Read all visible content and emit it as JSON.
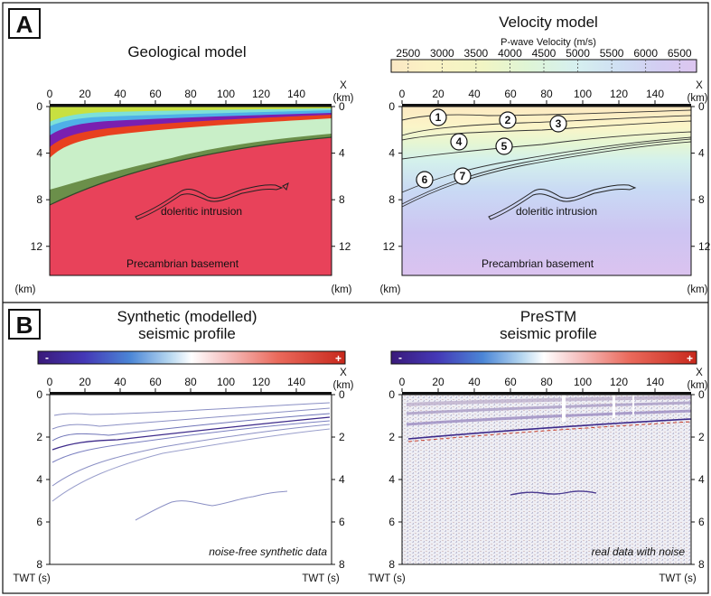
{
  "panel_a": {
    "letter": "A",
    "geo_title": "Geological model",
    "vel_title": "Velocity model",
    "colorbar_title": "P-wave Velocity (m/s)",
    "colorbar_ticks": [
      "2500",
      "3000",
      "3500",
      "4000",
      "4500",
      "5000",
      "5500",
      "6000",
      "6500"
    ],
    "x_label": "X",
    "x_unit": "(km)",
    "x_ticks": [
      "0",
      "20",
      "40",
      "60",
      "80",
      "100",
      "120",
      "140"
    ],
    "depth_ticks": [
      "0",
      "4",
      "8",
      "12"
    ],
    "depth_unit": "(km)",
    "intrusion_label": "doleritic intrusion",
    "basement_label": "Precambrian basement",
    "horizon_numbers": [
      "1",
      "2",
      "3",
      "4",
      "5",
      "6",
      "7"
    ]
  },
  "panel_b": {
    "letter": "B",
    "synth_title_1": "Synthetic (modelled)",
    "synth_title_2": "seismic profile",
    "prestm_title_1": "PreSTM",
    "prestm_title_2": "seismic profile",
    "colorbar_minus": "-",
    "colorbar_plus": "+",
    "x_label": "X",
    "x_unit": "(km)",
    "x_ticks": [
      "0",
      "20",
      "40",
      "60",
      "80",
      "100",
      "120",
      "140"
    ],
    "time_ticks": [
      "0",
      "2",
      "4",
      "6",
      "8"
    ],
    "time_unit": "TWT (s)",
    "synth_note": "noise-free synthetic data",
    "prestm_note": "real data with noise"
  },
  "colors": {
    "basement": "#e8425a",
    "dark_green": "#6b8f4a",
    "light_green": "#c9efc8",
    "red_layer": "#e8401f",
    "purple_layer": "#7a1fb0",
    "blue_layer": "#4fb0e8",
    "cyan_layer": "#7de0d8",
    "yellow_green": "#c8e040"
  }
}
